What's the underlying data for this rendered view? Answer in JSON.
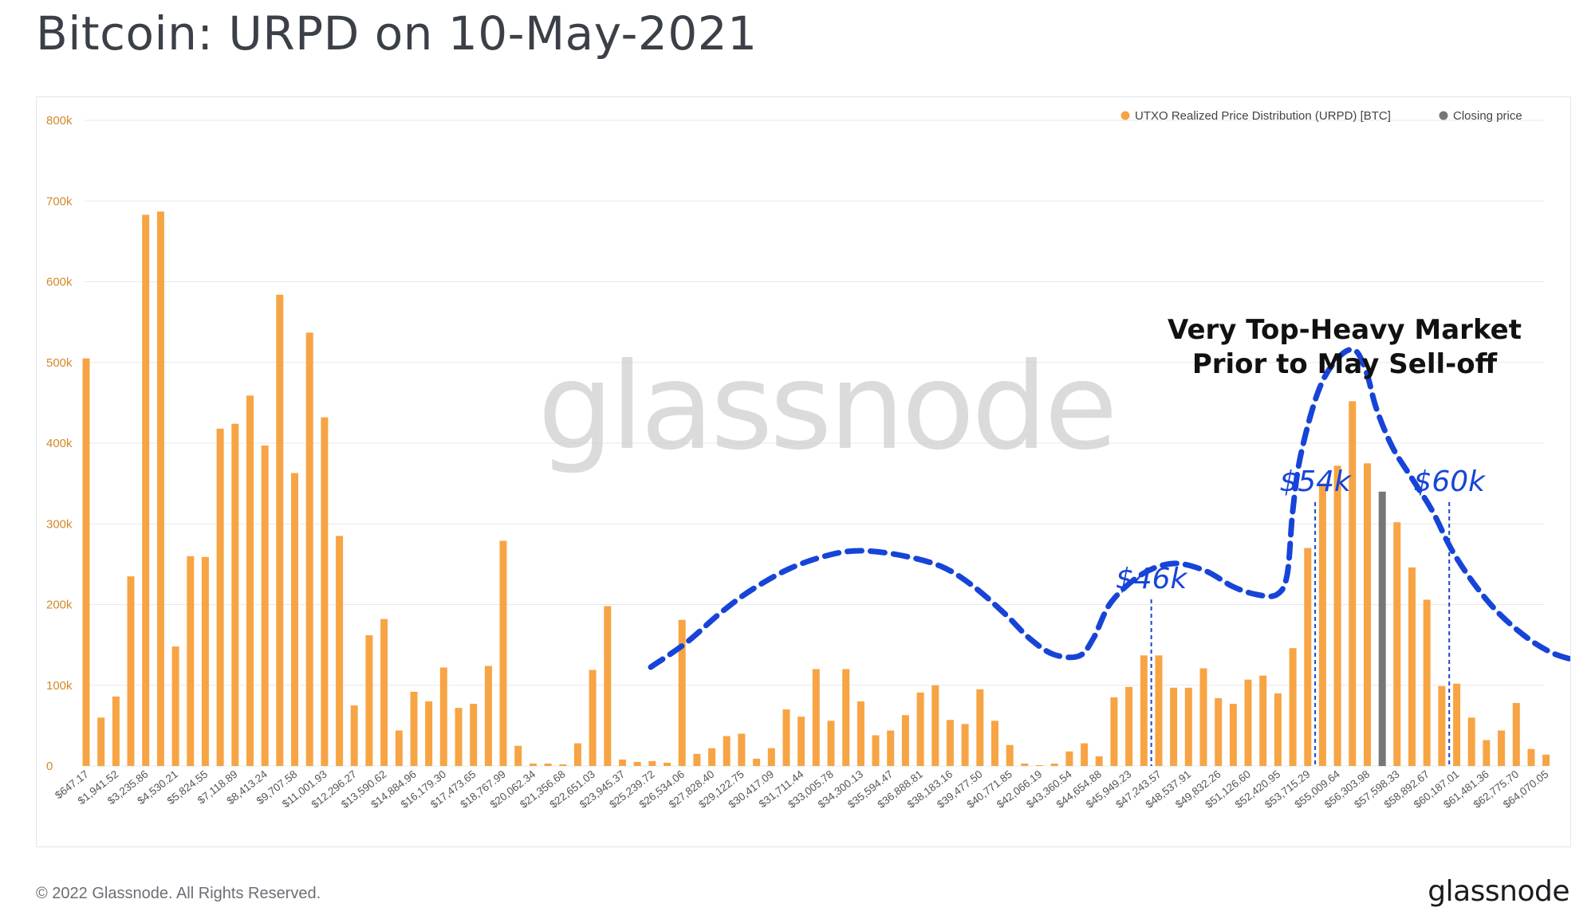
{
  "title": "Bitcoin: URPD on 10-May-2021",
  "footer": {
    "copyright": "© 2022 Glassnode. All Rights Reserved.",
    "logo": "glassnode"
  },
  "watermark": "glassnode",
  "colors": {
    "bar": "#f7a444",
    "closing_bar": "#777777",
    "grid": "#e8e8e8",
    "tick_text": "#d08a2a",
    "x_tick_text": "#555555",
    "annotation_blue": "#1744d8",
    "title_text": "#3b4048"
  },
  "legend": [
    {
      "label": "UTXO Realized Price Distribution (URPD) [BTC]",
      "color": "#f7a444",
      "marker": "dot"
    },
    {
      "label": "Closing price",
      "color": "#777777",
      "marker": "dot"
    }
  ],
  "annotations": {
    "headline": [
      "Very Top-Heavy Market",
      "Prior to May Sell-off"
    ],
    "markers": [
      {
        "label": "$46k",
        "bar_index": 71
      },
      {
        "label": "$54k",
        "bar_index": 82
      },
      {
        "label": "$60k",
        "bar_index": 91
      }
    ]
  },
  "chart_data": {
    "type": "bar",
    "title": "",
    "xlabel": "",
    "ylabel": "",
    "ylim": [
      0,
      800000
    ],
    "y_ticks": [
      "0",
      "100k",
      "200k",
      "300k",
      "400k",
      "500k",
      "600k",
      "700k",
      "800k"
    ],
    "x_tick_labels": [
      "$647.17",
      "$1,941.52",
      "$3,235.86",
      "$4,530.21",
      "$5,824.55",
      "$7,118.89",
      "$8,413.24",
      "$9,707.58",
      "$11,001.93",
      "$12,296.27",
      "$13,590.62",
      "$14,884.96",
      "$16,179.30",
      "$17,473.65",
      "$18,767.99",
      "$20,062.34",
      "$21,356.68",
      "$22,651.03",
      "$23,945.37",
      "$25,239.72",
      "$26,534.06",
      "$27,828.40",
      "$29,122.75",
      "$30,417.09",
      "$31,711.44",
      "$33,005.78",
      "$34,300.13",
      "$35,594.47",
      "$36,888.81",
      "$38,183.16",
      "$39,477.50",
      "$40,771.85",
      "$42,066.19",
      "$43,360.54",
      "$44,654.88",
      "$45,949.23",
      "$47,243.57",
      "$48,537.91",
      "$49,832.26",
      "$51,126.60",
      "$52,420.95",
      "$53,715.29",
      "$55,009.64",
      "$56,303.98",
      "$57,598.33",
      "$58,892.67",
      "$60,187.01",
      "$61,481.36",
      "$62,775.70",
      "$64,070.05"
    ],
    "closing_price_bar_index": 87,
    "series": [
      {
        "name": "UTXO Realized Price Distribution (URPD) [BTC]",
        "values": [
          505000,
          60000,
          86000,
          235000,
          683000,
          687000,
          148000,
          260000,
          259000,
          418000,
          424000,
          459000,
          397000,
          584000,
          363000,
          537000,
          432000,
          285000,
          75000,
          162000,
          182000,
          44000,
          92000,
          80000,
          122000,
          72000,
          77000,
          124000,
          279000,
          25000,
          3000,
          3000,
          2000,
          28000,
          119000,
          198000,
          8000,
          5000,
          6000,
          4000,
          181000,
          15000,
          22000,
          37000,
          40000,
          9000,
          22000,
          70000,
          61000,
          120000,
          56000,
          120000,
          80000,
          38000,
          44000,
          63000,
          91000,
          100000,
          57000,
          52000,
          95000,
          56000,
          26000,
          3000,
          1000,
          3000,
          18000,
          28000,
          12000,
          85000,
          98000,
          137000,
          137000,
          97000,
          97000,
          121000,
          84000,
          77000,
          107000,
          112000,
          90000,
          146000,
          270000,
          350000,
          372000,
          452000,
          375000,
          340000,
          302000,
          246000,
          206000,
          99000,
          102000,
          60000,
          32000,
          44000,
          78000,
          21000,
          14000
        ]
      }
    ]
  }
}
